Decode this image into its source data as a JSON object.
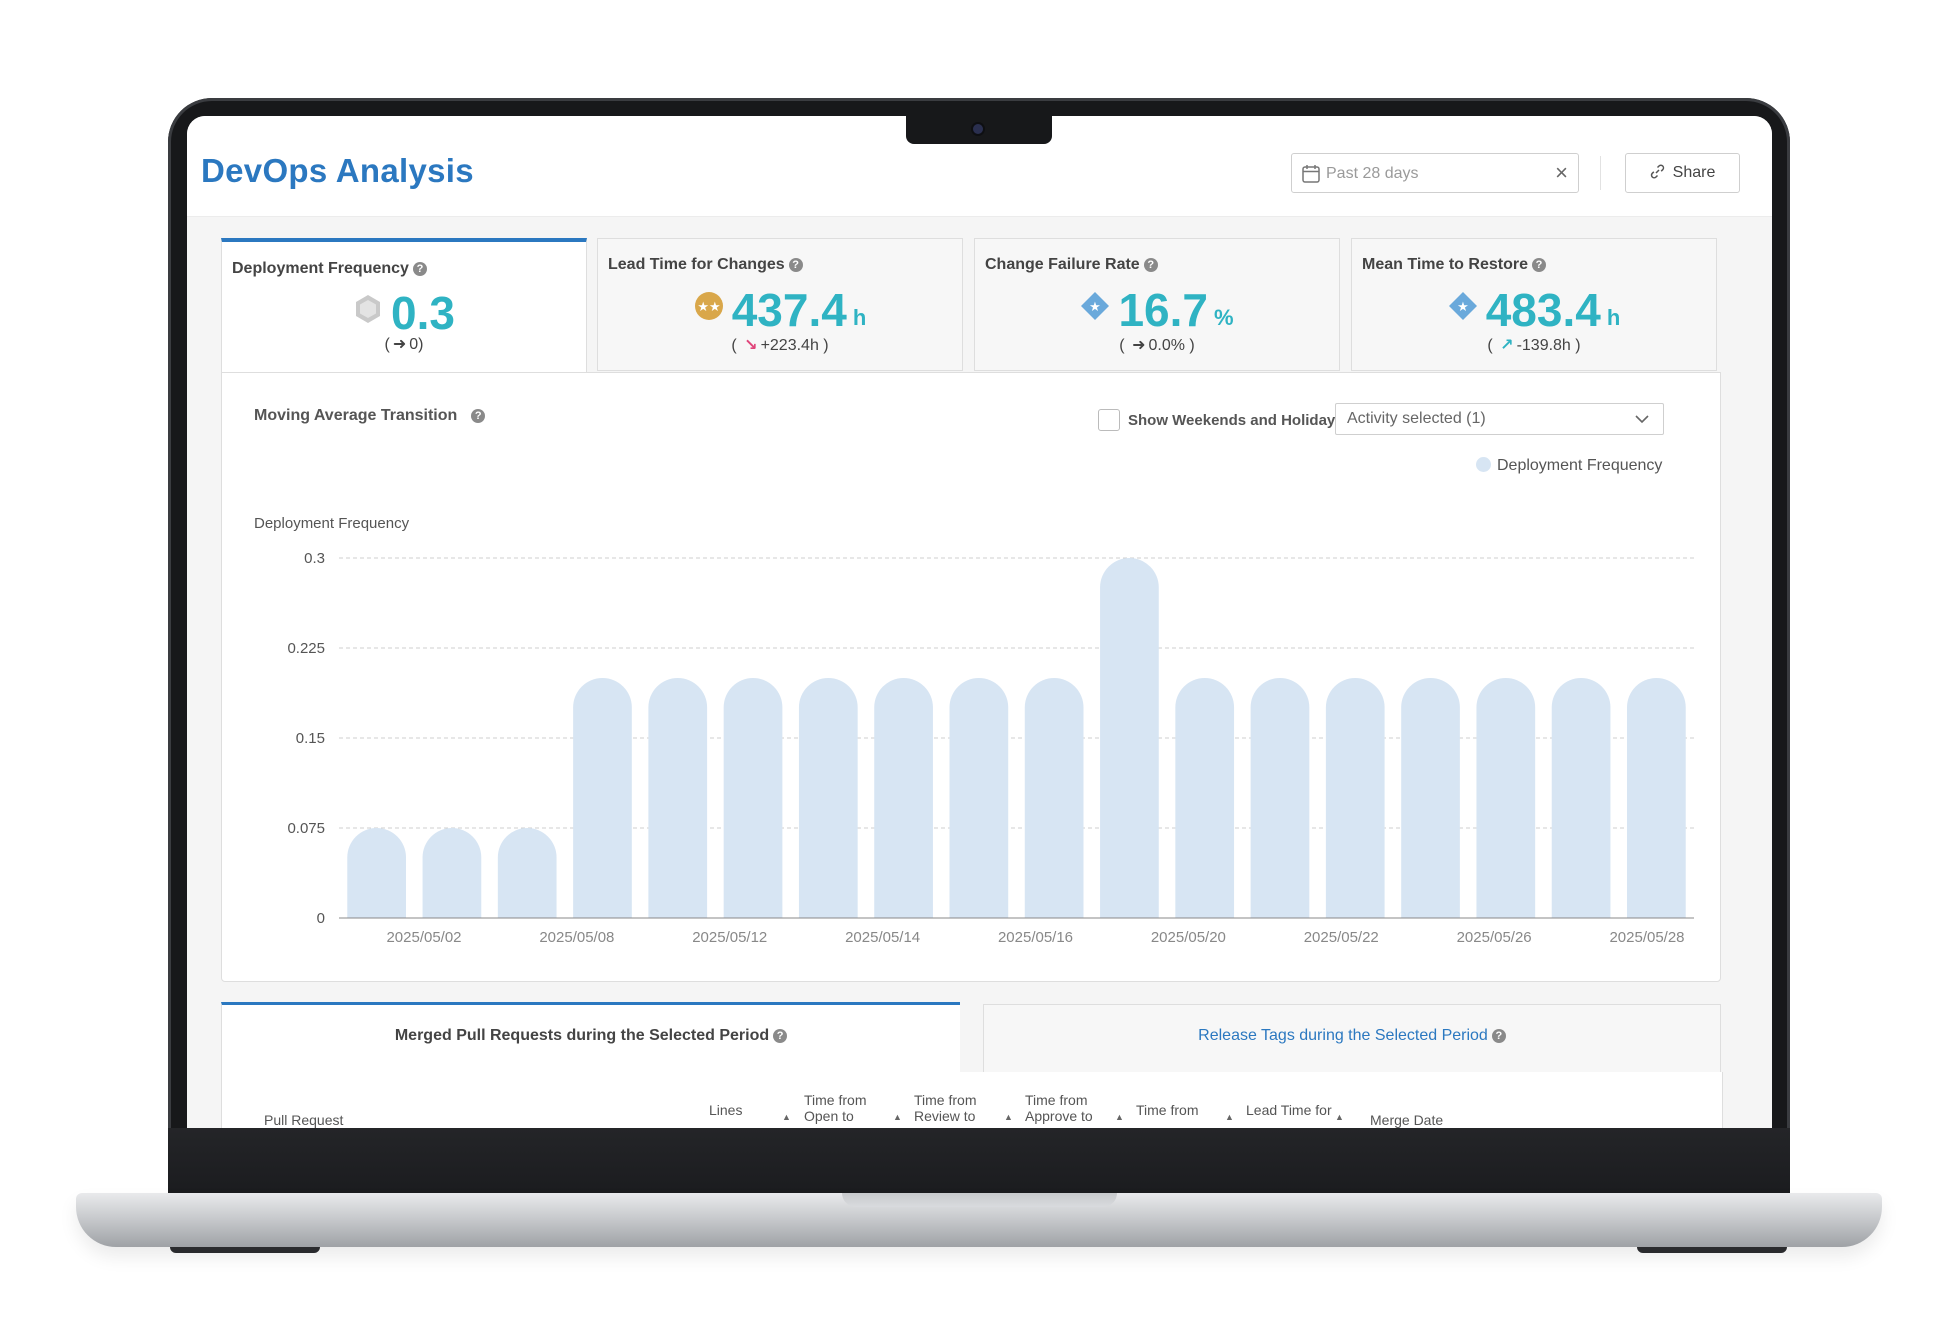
{
  "app": {
    "title": "DevOps Analysis"
  },
  "header": {
    "date_range": "Past 28 days",
    "share_label": "Share"
  },
  "metrics": [
    {
      "label": "Deployment Frequency",
      "value": "0.3",
      "unit": "",
      "delta": "0",
      "trend": "flat",
      "badge": "hexagon-badge-icon",
      "active": true
    },
    {
      "label": "Lead Time for Changes",
      "value": "437.4",
      "unit": "h",
      "delta": "+223.4h",
      "trend": "down-right",
      "badge": "gold-stars-badge-icon",
      "active": false
    },
    {
      "label": "Change Failure Rate",
      "value": "16.7",
      "unit": "%",
      "delta": "0.0%",
      "trend": "flat",
      "badge": "diamond-star-badge-icon",
      "active": false
    },
    {
      "label": "Mean Time to Restore",
      "value": "483.4",
      "unit": "h",
      "delta": "-139.8h",
      "trend": "up-right",
      "badge": "diamond-star-badge-icon",
      "active": false
    }
  ],
  "chart_panel": {
    "title": "Moving Average Transition",
    "weekend_toggle_label": "Show Weekends and Holidays",
    "activity_select": "Activity selected (1)"
  },
  "chart_data": {
    "type": "bar",
    "title": "",
    "ylabel": "Deployment Frequency",
    "ylim": [
      0,
      0.3
    ],
    "yticks": [
      "0",
      "0.075",
      "0.15",
      "0.225",
      "0.3"
    ],
    "xtick_labels": [
      "2025/05/02",
      "2025/05/08",
      "2025/05/12",
      "2025/05/14",
      "2025/05/16",
      "2025/05/20",
      "2025/05/22",
      "2025/05/26",
      "2025/05/28"
    ],
    "legend": "top-right",
    "series": [
      {
        "name": "Deployment Frequency",
        "color": "#d7e5f3",
        "values": [
          0.075,
          0.075,
          0.075,
          0.2,
          0.2,
          0.2,
          0.2,
          0.2,
          0.2,
          0.2,
          0.3,
          0.2,
          0.2,
          0.2,
          0.2,
          0.2,
          0.2,
          0.2
        ]
      }
    ],
    "grid": true
  },
  "bottom_tabs": {
    "merged_prs": "Merged Pull Requests during the Selected Period",
    "release_tags": "Release Tags during the Selected Period"
  },
  "table_headers": [
    "Pull Request",
    "Lines",
    "Time from Open to",
    "Time from Review to",
    "Time from Approve to",
    "Time from",
    "Lead Time for",
    "Merge Date"
  ],
  "colors": {
    "accent": "#2b78c0",
    "metric_value": "#2fb3c3",
    "bar": "#d7e5f3"
  }
}
